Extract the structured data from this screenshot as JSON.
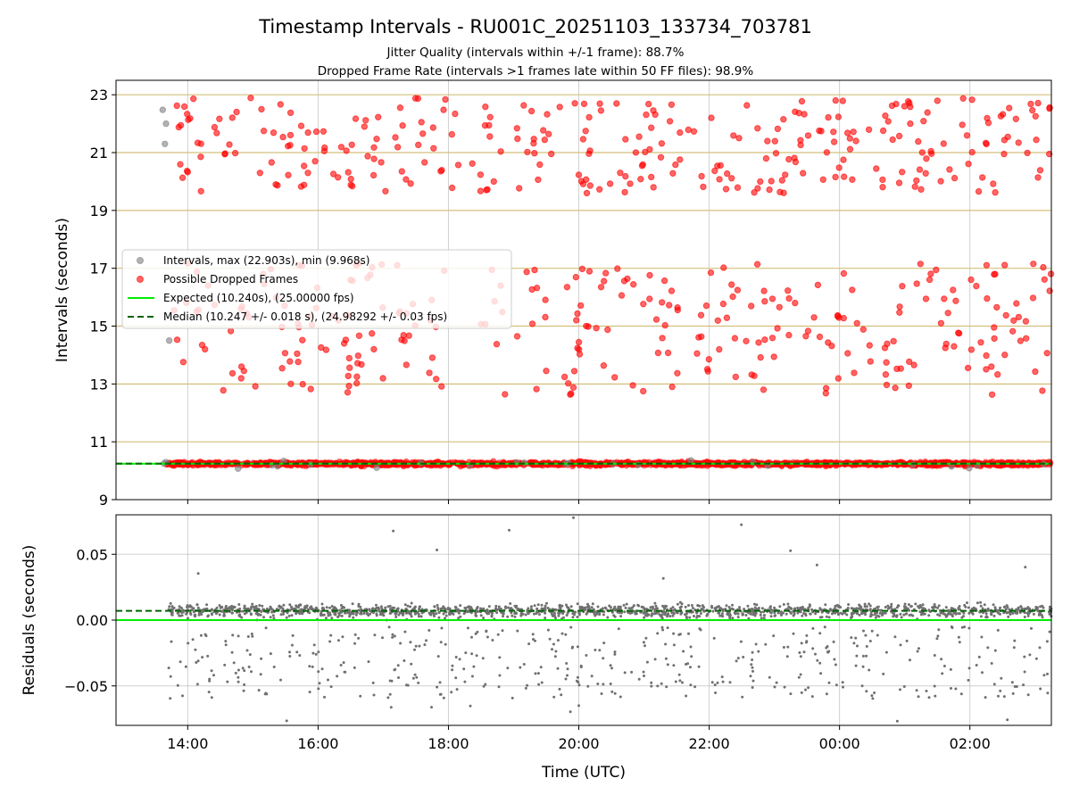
{
  "figure": {
    "title": "Timestamp Intervals - RU001C_20251103_133734_703781",
    "subtitle_1": "Jitter Quality (intervals within +/-1 frame): 88.7%",
    "subtitle_2": "Dropped Frame Rate (intervals >1 frames late within 50 FF files): 98.9%"
  },
  "colors": {
    "intervals": "#808080",
    "dropped": "#ff0000",
    "expected": "#00ee00",
    "median": "#006400",
    "residuals": "#707070",
    "frame_lines": "#d4bf7a",
    "grid": "#b0b0b0"
  },
  "chart_data": [
    {
      "type": "scatter",
      "name": "intervals",
      "xlabel": "",
      "ylabel": "Intervals (seconds)",
      "x_axis": "time",
      "xlim": [
        "2025-11-03T12:54",
        "2025-11-04T03:15"
      ],
      "ylim": [
        9,
        23.5
      ],
      "yticks": [
        9,
        11,
        13,
        15,
        17,
        19,
        21,
        23
      ],
      "xticks": [
        "14:00",
        "16:00",
        "18:00",
        "20:00",
        "22:00",
        "00:00",
        "02:00"
      ],
      "frame_lines_y": [
        10.24,
        13.0,
        15.0,
        17.0,
        19.0,
        21.0,
        23.0
      ],
      "legend": {
        "placement": "center-left",
        "entries": [
          {
            "label": "Intervals, max (22.903s), min (9.968s)",
            "marker": "grey-dot"
          },
          {
            "label": "Possible Dropped Frames",
            "marker": "red-dot"
          },
          {
            "label": "Expected (10.240s), (25.00000 fps)",
            "marker": "green-line"
          },
          {
            "label": "Median (10.247 +/- 0.018 s), (24.98292 +/- 0.03 fps)",
            "marker": "green-dashed-line"
          }
        ]
      },
      "expected_y": 10.24,
      "median_y": 10.247,
      "max_interval": 22.903,
      "min_interval": 9.968,
      "data_time_range": [
        "13:37",
        "03:15"
      ],
      "grey_early_points": [
        {
          "t": "13:37",
          "y": 22.48
        },
        {
          "t": "13:40",
          "y": 22.0
        },
        {
          "t": "13:39",
          "y": 21.3
        },
        {
          "t": "13:43",
          "y": 14.5
        },
        {
          "t": "13:38",
          "y": 10.25
        },
        {
          "t": "13:40",
          "y": 10.3
        }
      ],
      "dropped_bands": [
        {
          "low": 19.6,
          "high": 22.9
        },
        {
          "low": 12.6,
          "high": 17.2
        }
      ],
      "baseline_band": {
        "center": 10.24,
        "spread": 0.06
      }
    },
    {
      "type": "scatter",
      "name": "residuals",
      "xlabel": "Time (UTC)",
      "ylabel": "Residuals (seconds)",
      "x_axis": "time",
      "xlim": [
        "2025-11-03T12:54",
        "2025-11-04T03:15"
      ],
      "ylim": [
        -0.08,
        0.08
      ],
      "yticks": [
        0.05,
        0.0,
        -0.05
      ],
      "ytick_labels": [
        "0.05",
        "0.00",
        "−0.05"
      ],
      "xticks": [
        "14:00",
        "16:00",
        "18:00",
        "20:00",
        "22:00",
        "00:00",
        "02:00"
      ],
      "expected_y": 0.0,
      "median_y": 0.007,
      "cluster_center": 0.007,
      "cluster_spread": 0.004,
      "scatter_range": [
        -0.077,
        0.08
      ]
    }
  ]
}
